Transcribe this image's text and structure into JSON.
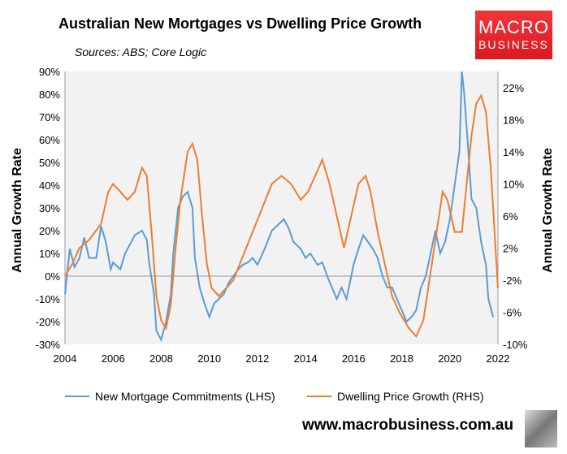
{
  "chart_data": {
    "type": "line",
    "title": "Australian New Mortgages vs Dwelling Price Growth",
    "subtitle": "Sources: ABS; Core Logic",
    "ylabel": "Annual Growth Rate",
    "y2label": "Annual Growth Rate",
    "xlim": [
      2004,
      2022
    ],
    "ylim": [
      -30,
      90
    ],
    "y2lim": [
      -10,
      24
    ],
    "xticks": [
      "2004",
      "2006",
      "2008",
      "2010",
      "2012",
      "2014",
      "2016",
      "2018",
      "2020",
      "2022"
    ],
    "yticks": [
      "90%",
      "80%",
      "70%",
      "60%",
      "50%",
      "40%",
      "30%",
      "20%",
      "10%",
      "0%",
      "-10%",
      "-20%",
      "-30%"
    ],
    "y2ticks": [
      "22%",
      "18%",
      "14%",
      "10%",
      "6%",
      "2%",
      "-2%",
      "-6%",
      "-10%"
    ],
    "grid": false,
    "legend": "bottom",
    "series": [
      {
        "name": "New Mortgage Commitments (LHS)",
        "axis": "left",
        "color": "#5b9bd5",
        "x": [
          2004.0,
          2004.2,
          2004.4,
          2004.6,
          2004.8,
          2005.0,
          2005.3,
          2005.5,
          2005.7,
          2005.9,
          2006.0,
          2006.3,
          2006.5,
          2006.7,
          2006.9,
          2007.2,
          2007.4,
          2007.5,
          2007.7,
          2007.8,
          2008.0,
          2008.2,
          2008.4,
          2008.5,
          2008.7,
          2008.9,
          2009.1,
          2009.3,
          2009.4,
          2009.6,
          2009.8,
          2010.0,
          2010.2,
          2010.4,
          2010.6,
          2010.8,
          2011.0,
          2011.2,
          2011.4,
          2011.6,
          2011.8,
          2012.0,
          2012.3,
          2012.6,
          2012.9,
          2013.1,
          2013.3,
          2013.5,
          2013.8,
          2014.0,
          2014.2,
          2014.5,
          2014.7,
          2014.9,
          2015.1,
          2015.3,
          2015.5,
          2015.7,
          2015.9,
          2016.0,
          2016.2,
          2016.4,
          2016.6,
          2016.8,
          2017.0,
          2017.2,
          2017.4,
          2017.6,
          2017.8,
          2018.0,
          2018.2,
          2018.4,
          2018.6,
          2018.8,
          2019.0,
          2019.2,
          2019.4,
          2019.6,
          2019.8,
          2020.0,
          2020.2,
          2020.4,
          2020.5,
          2020.6,
          2020.8,
          2020.9,
          2021.1,
          2021.3,
          2021.5,
          2021.6,
          2021.8
        ],
        "y": [
          -8,
          12,
          4,
          8,
          17,
          8,
          8,
          22,
          15,
          3,
          6,
          3,
          10,
          14,
          18,
          20,
          16,
          6,
          -8,
          -24,
          -28,
          -20,
          -8,
          10,
          30,
          35,
          37,
          30,
          8,
          -5,
          -12,
          -18,
          -12,
          -10,
          -8,
          -3,
          0,
          3,
          5,
          6,
          8,
          5,
          12,
          20,
          23,
          25,
          21,
          15,
          12,
          8,
          10,
          5,
          6,
          0,
          -5,
          -10,
          -5,
          -10,
          0,
          5,
          12,
          18,
          15,
          12,
          8,
          0,
          -5,
          -5,
          -10,
          -15,
          -20,
          -18,
          -15,
          -5,
          0,
          10,
          20,
          10,
          15,
          25,
          40,
          55,
          90,
          80,
          50,
          34,
          30,
          15,
          5,
          -10,
          -18
        ]
      },
      {
        "name": "Dwelling Price Growth (RHS)",
        "axis": "right",
        "color": "#ed7d31",
        "x": [
          2004.0,
          2004.3,
          2004.6,
          2005.0,
          2005.5,
          2005.8,
          2006.0,
          2006.3,
          2006.6,
          2006.9,
          2007.2,
          2007.4,
          2007.6,
          2007.8,
          2008.0,
          2008.2,
          2008.4,
          2008.6,
          2008.8,
          2009.1,
          2009.3,
          2009.5,
          2009.7,
          2009.9,
          2010.1,
          2010.4,
          2010.7,
          2011.0,
          2011.4,
          2011.8,
          2012.2,
          2012.6,
          2013.0,
          2013.4,
          2013.8,
          2014.1,
          2014.4,
          2014.7,
          2015.0,
          2015.3,
          2015.6,
          2015.9,
          2016.2,
          2016.5,
          2016.7,
          2017.0,
          2017.3,
          2017.6,
          2017.9,
          2018.3,
          2018.6,
          2018.9,
          2019.2,
          2019.5,
          2019.7,
          2019.9,
          2020.2,
          2020.5,
          2020.7,
          2020.9,
          2021.1,
          2021.3,
          2021.5,
          2021.7,
          2021.9,
          2022.0
        ],
        "y": [
          -1.5,
          0,
          2,
          3,
          5,
          9,
          10,
          9,
          8,
          9,
          12,
          11,
          4,
          -4,
          -7,
          -8,
          -5,
          2,
          8,
          14,
          15,
          13,
          6,
          0,
          -3,
          -4,
          -3,
          -2,
          1,
          4,
          7,
          10,
          11,
          10,
          8,
          9,
          11,
          13,
          10,
          6,
          2,
          6,
          10,
          11,
          9,
          4,
          0,
          -4,
          -6,
          -8,
          -9,
          -7,
          -1,
          5,
          9,
          8,
          4,
          4,
          10,
          16,
          20,
          21,
          19,
          12,
          2,
          -3
        ]
      }
    ]
  },
  "logo": {
    "line1": "MACRO",
    "line2": "BUSINESS"
  },
  "footer": {
    "url": "www.macrobusiness.com.au"
  }
}
